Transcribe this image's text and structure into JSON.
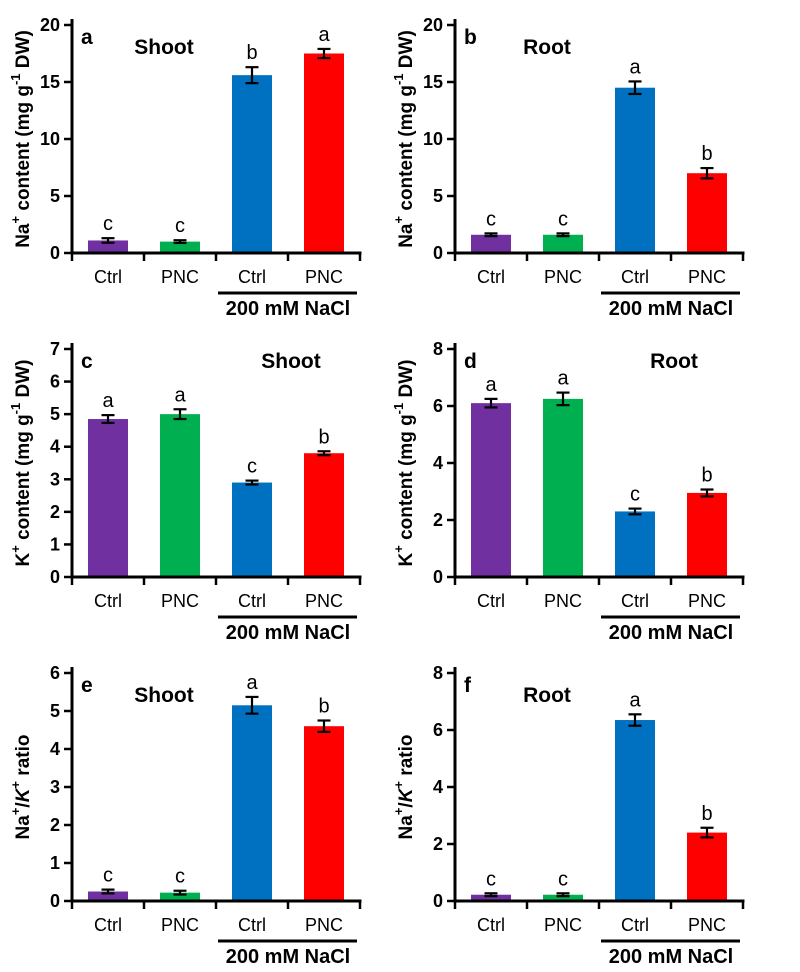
{
  "figure": {
    "background": "#ffffff",
    "axis_color": "#000000",
    "error_bar_color": "#000000",
    "bar_colors": [
      "#7030A0",
      "#00B050",
      "#0070C0",
      "#FF0000"
    ],
    "condition_labels": [
      "Ctrl",
      "PNC"
    ],
    "treatment_label": "200 mM NaCl"
  },
  "chart_data": [
    {
      "type": "bar",
      "panel_letter": "a",
      "title": "Shoot",
      "title_align": "left",
      "ylabel": "Na^+^ content (mg g^-1^ DW)",
      "ylim": [
        0,
        20
      ],
      "yticks": [
        0,
        5,
        10,
        15,
        20
      ],
      "categories": [
        "Ctrl",
        "PNC",
        "Ctrl",
        "PNC"
      ],
      "group_label": "200 mM NaCl",
      "values": [
        1.1,
        1.0,
        15.6,
        17.5
      ],
      "errors": [
        0.2,
        0.12,
        0.7,
        0.4
      ],
      "sig_letters": [
        "c",
        "c",
        "b",
        "a"
      ],
      "colors": [
        "#7030A0",
        "#00B050",
        "#0070C0",
        "#FF0000"
      ]
    },
    {
      "type": "bar",
      "panel_letter": "b",
      "title": "Root",
      "title_align": "left",
      "ylabel": "Na^+^ content (mg g^-1^ DW)",
      "ylim": [
        0,
        20
      ],
      "yticks": [
        0,
        5,
        10,
        15,
        20
      ],
      "categories": [
        "Ctrl",
        "PNC",
        "Ctrl",
        "PNC"
      ],
      "group_label": "200 mM NaCl",
      "values": [
        1.6,
        1.6,
        14.5,
        7.0
      ],
      "errors": [
        0.12,
        0.12,
        0.55,
        0.45
      ],
      "sig_letters": [
        "c",
        "c",
        "a",
        "b"
      ],
      "colors": [
        "#7030A0",
        "#00B050",
        "#0070C0",
        "#FF0000"
      ]
    },
    {
      "type": "bar",
      "panel_letter": "c",
      "title": "Shoot",
      "title_align": "right",
      "ylabel": "K^+^ content (mg g^-1^ DW)",
      "ylim": [
        0,
        7
      ],
      "yticks": [
        0,
        1,
        2,
        3,
        4,
        5,
        6,
        7
      ],
      "categories": [
        "Ctrl",
        "PNC",
        "Ctrl",
        "PNC"
      ],
      "group_label": "200 mM NaCl",
      "values": [
        4.85,
        5.0,
        2.9,
        3.8
      ],
      "errors": [
        0.12,
        0.15,
        0.06,
        0.06
      ],
      "sig_letters": [
        "a",
        "a",
        "c",
        "b"
      ],
      "colors": [
        "#7030A0",
        "#00B050",
        "#0070C0",
        "#FF0000"
      ]
    },
    {
      "type": "bar",
      "panel_letter": "d",
      "title": "Root",
      "title_align": "right",
      "ylabel": "K^+^ content (mg g^-1^ DW)",
      "ylim": [
        0,
        8
      ],
      "yticks": [
        0,
        2,
        4,
        6,
        8
      ],
      "categories": [
        "Ctrl",
        "PNC",
        "Ctrl",
        "PNC"
      ],
      "group_label": "200 mM NaCl",
      "values": [
        6.1,
        6.25,
        2.3,
        2.95
      ],
      "errors": [
        0.15,
        0.22,
        0.1,
        0.12
      ],
      "sig_letters": [
        "a",
        "a",
        "c",
        "b"
      ],
      "colors": [
        "#7030A0",
        "#00B050",
        "#0070C0",
        "#FF0000"
      ]
    },
    {
      "type": "bar",
      "panel_letter": "e",
      "title": "Shoot",
      "title_align": "left",
      "ylabel": "Na^+^/*K*^+^ ratio",
      "ylim": [
        0,
        6
      ],
      "yticks": [
        0,
        1,
        2,
        3,
        4,
        5,
        6
      ],
      "categories": [
        "Ctrl",
        "PNC",
        "Ctrl",
        "PNC"
      ],
      "group_label": "200 mM NaCl",
      "values": [
        0.25,
        0.22,
        5.15,
        4.6
      ],
      "errors": [
        0.05,
        0.05,
        0.22,
        0.15
      ],
      "sig_letters": [
        "c",
        "c",
        "a",
        "b"
      ],
      "colors": [
        "#7030A0",
        "#00B050",
        "#0070C0",
        "#FF0000"
      ]
    },
    {
      "type": "bar",
      "panel_letter": "f",
      "title": "Root",
      "title_align": "left",
      "ylabel": "Na^+^/*K*^+^ ratio",
      "ylim": [
        0,
        8
      ],
      "yticks": [
        0,
        2,
        4,
        6,
        8
      ],
      "categories": [
        "Ctrl",
        "PNC",
        "Ctrl",
        "PNC"
      ],
      "group_label": "200 mM NaCl",
      "values": [
        0.22,
        0.22,
        6.35,
        2.4
      ],
      "errors": [
        0.05,
        0.05,
        0.2,
        0.17
      ],
      "sig_letters": [
        "c",
        "c",
        "a",
        "b"
      ],
      "colors": [
        "#7030A0",
        "#00B050",
        "#0070C0",
        "#FF0000"
      ]
    }
  ]
}
